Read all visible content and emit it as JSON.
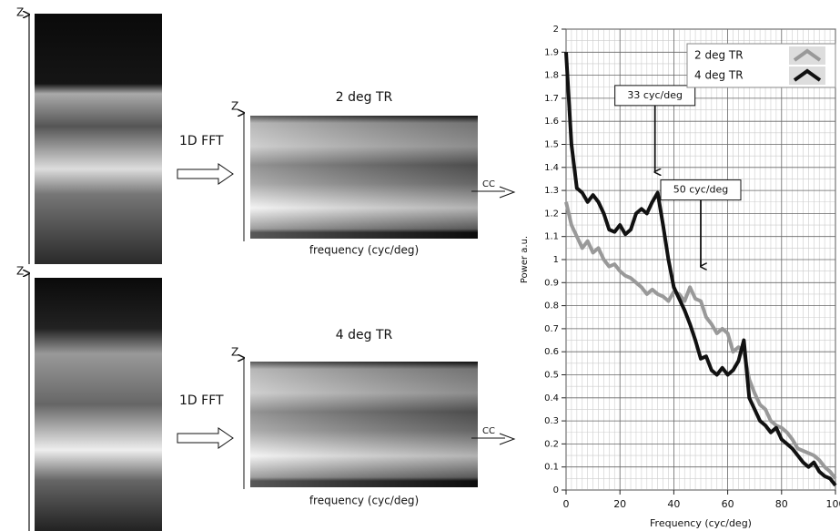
{
  "panels": [
    {
      "z_image": "Z",
      "z_spectrum": "Z",
      "fft": "1D FFT",
      "title": "2 deg TR",
      "xlabel": "frequency (cyc/deg)",
      "cc": "CC"
    },
    {
      "z_image": "Z",
      "z_spectrum": "Z",
      "fft": "1D FFT",
      "title": "4 deg TR",
      "xlabel": "frequency (cyc/deg)",
      "cc": "CC"
    }
  ],
  "chart_data": {
    "type": "line",
    "xlabel": "Frequency (cyc/deg)",
    "ylabel": "Power a.u.",
    "x": [
      0,
      2,
      4,
      6,
      8,
      10,
      12,
      14,
      16,
      18,
      20,
      22,
      24,
      26,
      28,
      30,
      32,
      34,
      36,
      38,
      40,
      42,
      44,
      46,
      48,
      50,
      52,
      54,
      56,
      58,
      60,
      62,
      64,
      66,
      68,
      70,
      72,
      74,
      76,
      78,
      80,
      82,
      84,
      86,
      88,
      90,
      92,
      94,
      96,
      98,
      100
    ],
    "series": [
      {
        "name": "2 deg TR",
        "color": "#999999",
        "values": [
          1.25,
          1.15,
          1.1,
          1.05,
          1.08,
          1.03,
          1.05,
          1.0,
          0.97,
          0.98,
          0.95,
          0.93,
          0.92,
          0.9,
          0.88,
          0.85,
          0.87,
          0.85,
          0.84,
          0.82,
          0.86,
          0.85,
          0.82,
          0.88,
          0.83,
          0.82,
          0.75,
          0.72,
          0.68,
          0.7,
          0.68,
          0.6,
          0.62,
          0.6,
          0.48,
          0.42,
          0.37,
          0.35,
          0.3,
          0.28,
          0.27,
          0.25,
          0.22,
          0.18,
          0.17,
          0.16,
          0.15,
          0.13,
          0.1,
          0.08,
          0.05
        ]
      },
      {
        "name": "4 deg TR",
        "color": "#111111",
        "values": [
          1.9,
          1.5,
          1.31,
          1.29,
          1.25,
          1.28,
          1.25,
          1.2,
          1.13,
          1.12,
          1.15,
          1.11,
          1.13,
          1.2,
          1.22,
          1.2,
          1.25,
          1.29,
          1.15,
          1.0,
          0.88,
          0.83,
          0.78,
          0.72,
          0.65,
          0.57,
          0.58,
          0.52,
          0.5,
          0.53,
          0.5,
          0.52,
          0.56,
          0.65,
          0.4,
          0.35,
          0.3,
          0.28,
          0.25,
          0.27,
          0.22,
          0.2,
          0.18,
          0.15,
          0.12,
          0.1,
          0.12,
          0.08,
          0.06,
          0.05,
          0.02
        ]
      }
    ],
    "xlim": [
      0,
      100
    ],
    "xticks": [
      0,
      20,
      40,
      60,
      80,
      100
    ],
    "ylim": [
      0,
      2
    ],
    "yticks": [
      0,
      0.1,
      0.2,
      0.3,
      0.4,
      0.5,
      0.6,
      0.7,
      0.8,
      0.9,
      1,
      1.1,
      1.2,
      1.3,
      1.4,
      1.5,
      1.6,
      1.7,
      1.8,
      1.9,
      2
    ],
    "grid": true,
    "legend": "upper right",
    "annotations": [
      {
        "text": "33 cyc/deg",
        "x": 33,
        "y": 1.38
      },
      {
        "text": "50 cyc/deg",
        "x": 50,
        "y": 0.97
      }
    ]
  }
}
